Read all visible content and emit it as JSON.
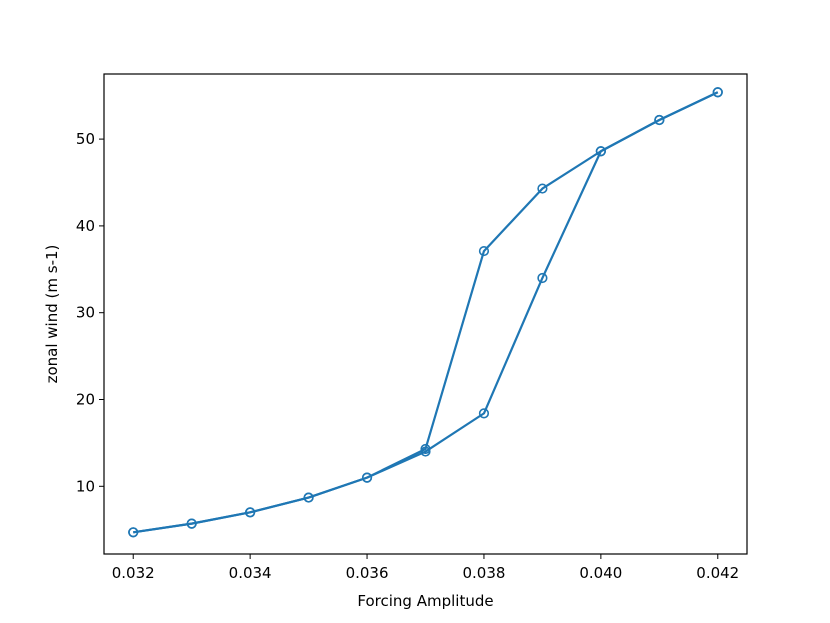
{
  "chart_data": {
    "type": "line",
    "title": "",
    "xlabel": "Forcing Amplitude",
    "ylabel": "zonal wind (m s-1)",
    "xlim": [
      0.0315,
      0.0425
    ],
    "ylim": [
      2.2,
      57.5
    ],
    "xticks": [
      0.032,
      0.034,
      0.036,
      0.038,
      0.04,
      0.042
    ],
    "xtick_labels": [
      "0.032",
      "0.034",
      "0.036",
      "0.038",
      "0.040",
      "0.042"
    ],
    "yticks": [
      10,
      20,
      30,
      40,
      50
    ],
    "ytick_labels": [
      "10",
      "20",
      "30",
      "40",
      "50"
    ],
    "grid": false,
    "legend": "none",
    "color": "#1f77b4",
    "marker": "open-circle",
    "series": [
      {
        "x": [
          0.032,
          0.033,
          0.034,
          0.035,
          0.036,
          0.037,
          0.038,
          0.039,
          0.04,
          0.041,
          0.042
        ],
        "y": [
          4.7,
          5.7,
          7.0,
          8.7,
          11.0,
          14.3,
          37.1,
          44.3,
          48.6,
          52.2,
          55.4
        ]
      },
      {
        "x": [
          0.032,
          0.033,
          0.034,
          0.035,
          0.036,
          0.037,
          0.038,
          0.039,
          0.04,
          0.041,
          0.042
        ],
        "y": [
          4.7,
          5.7,
          7.0,
          8.7,
          11.0,
          14.0,
          18.4,
          34.0,
          48.6,
          52.2,
          55.4
        ]
      }
    ]
  }
}
